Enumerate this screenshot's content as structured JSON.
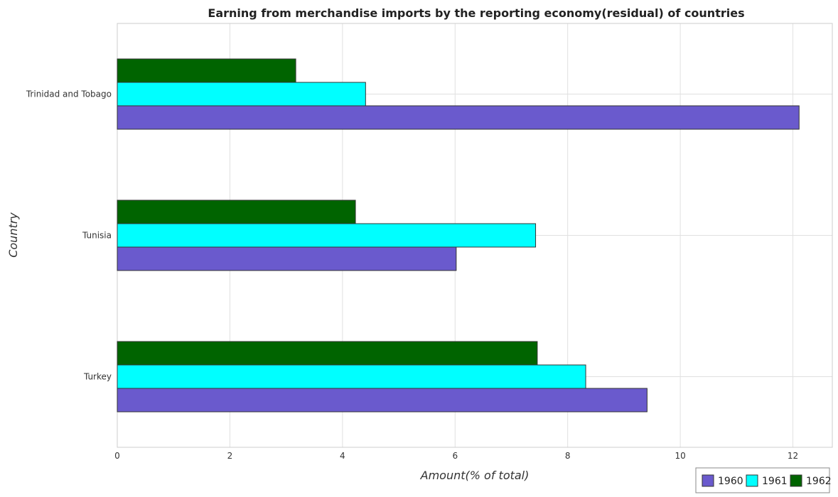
{
  "chart_data": {
    "type": "bar",
    "orientation": "horizontal",
    "title": "Earning from merchandise imports by the reporting economy(residual) of countries",
    "xlabel": "Amount(% of total)",
    "ylabel": "Country",
    "categories": [
      "Trinidad and Tobago",
      "Tunisia",
      "Turkey"
    ],
    "series": [
      {
        "name": "1960",
        "color": "#6a5acd",
        "values": [
          12.11,
          6.02,
          9.41
        ]
      },
      {
        "name": "1961",
        "color": "#00ffff",
        "values": [
          4.41,
          7.43,
          8.32
        ]
      },
      {
        "name": "1962",
        "color": "#006400",
        "values": [
          3.17,
          4.23,
          7.46
        ]
      }
    ],
    "xlim": [
      0,
      12.7
    ],
    "xticks": [
      0,
      2,
      4,
      6,
      8,
      10,
      12
    ],
    "grid": true,
    "legend_position": "bottom-right"
  }
}
